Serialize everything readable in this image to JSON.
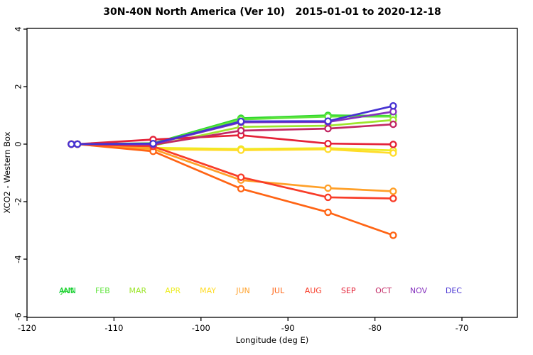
{
  "chart_data": {
    "type": "line",
    "title": "30N-40N North America (Ver 10)   2015-01-01 to 2020-12-18",
    "xlabel": "Longitude (deg E)",
    "ylabel": "XCO2 - Western Box",
    "xlim": [
      -120,
      -63.6
    ],
    "ylim": [
      -6,
      4
    ],
    "x_ticks": [
      -120,
      -110,
      -100,
      -90,
      -80,
      -70
    ],
    "y_ticks": [
      -6,
      -4,
      -2,
      0,
      2,
      4
    ],
    "grid": false,
    "legend_position": "bottom-inside",
    "x": [
      -114.9,
      -114.2,
      -105.5,
      -95.4,
      -85.4,
      -77.9
    ],
    "series": [
      {
        "name": "ANN",
        "color": "#00C832",
        "values": [
          0,
          0,
          0.02,
          0.88,
          0.97,
          0.98
        ]
      },
      {
        "name": "JAN",
        "color": "#2FD82F",
        "values": [
          0,
          0,
          0.03,
          0.9,
          1.0,
          0.98
        ]
      },
      {
        "name": "FEB",
        "color": "#5FE43C",
        "values": [
          0,
          0,
          0.0,
          0.86,
          0.96,
          0.96
        ]
      },
      {
        "name": "MAR",
        "color": "#9EE62E",
        "values": [
          0,
          0,
          -0.05,
          0.6,
          0.64,
          0.84
        ]
      },
      {
        "name": "APR",
        "color": "#ECEC20",
        "values": [
          0,
          0,
          -0.13,
          -0.17,
          -0.14,
          -0.22
        ]
      },
      {
        "name": "MAY",
        "color": "#FFDC28",
        "values": [
          0,
          0,
          -0.18,
          -0.21,
          -0.18,
          -0.31
        ]
      },
      {
        "name": "JUN",
        "color": "#FFA028",
        "values": [
          0,
          0,
          -0.17,
          -1.25,
          -1.53,
          -1.64
        ]
      },
      {
        "name": "JUL",
        "color": "#FF6414",
        "values": [
          0,
          0,
          -0.25,
          -1.55,
          -2.37,
          -3.17
        ]
      },
      {
        "name": "AUG",
        "color": "#F83C28",
        "values": [
          0,
          0,
          -0.08,
          -1.15,
          -1.85,
          -1.89
        ]
      },
      {
        "name": "SEP",
        "color": "#E42238",
        "values": [
          0,
          0,
          0.16,
          0.31,
          0.02,
          -0.01
        ]
      },
      {
        "name": "OCT",
        "color": "#C22864",
        "values": [
          0,
          0,
          -0.02,
          0.47,
          0.54,
          0.69
        ]
      },
      {
        "name": "NOV",
        "color": "#8632BE",
        "values": [
          0,
          0,
          0.0,
          0.76,
          0.77,
          1.13
        ]
      },
      {
        "name": "DEC",
        "color": "#4632D2",
        "values": [
          0,
          0,
          0.02,
          0.79,
          0.8,
          1.33
        ]
      }
    ],
    "legend_labels": [
      "ANN",
      "JAN",
      "FEB",
      "MAR",
      "APR",
      "MAY",
      "JUN",
      "JUL",
      "AUG",
      "SEP",
      "OCT",
      "NOV",
      "DEC"
    ]
  }
}
